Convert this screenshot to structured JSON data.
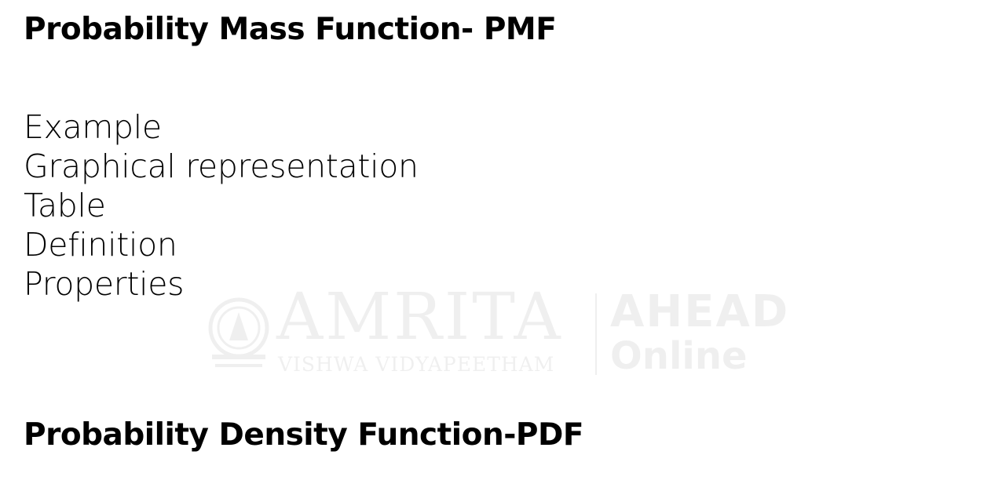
{
  "slide": {
    "heading_pmf": "Probability Mass Function- PMF",
    "topics": [
      "Example",
      "Graphical representation",
      "Table",
      "Definition",
      "Properties"
    ],
    "heading_pdf": "Probability Density Function-PDF"
  },
  "watermark": {
    "brand": "AMRITA",
    "subtitle": "VISHWA VIDYAPEETHAM",
    "partner_line1": "AHEAD",
    "partner_line2": "Online"
  }
}
